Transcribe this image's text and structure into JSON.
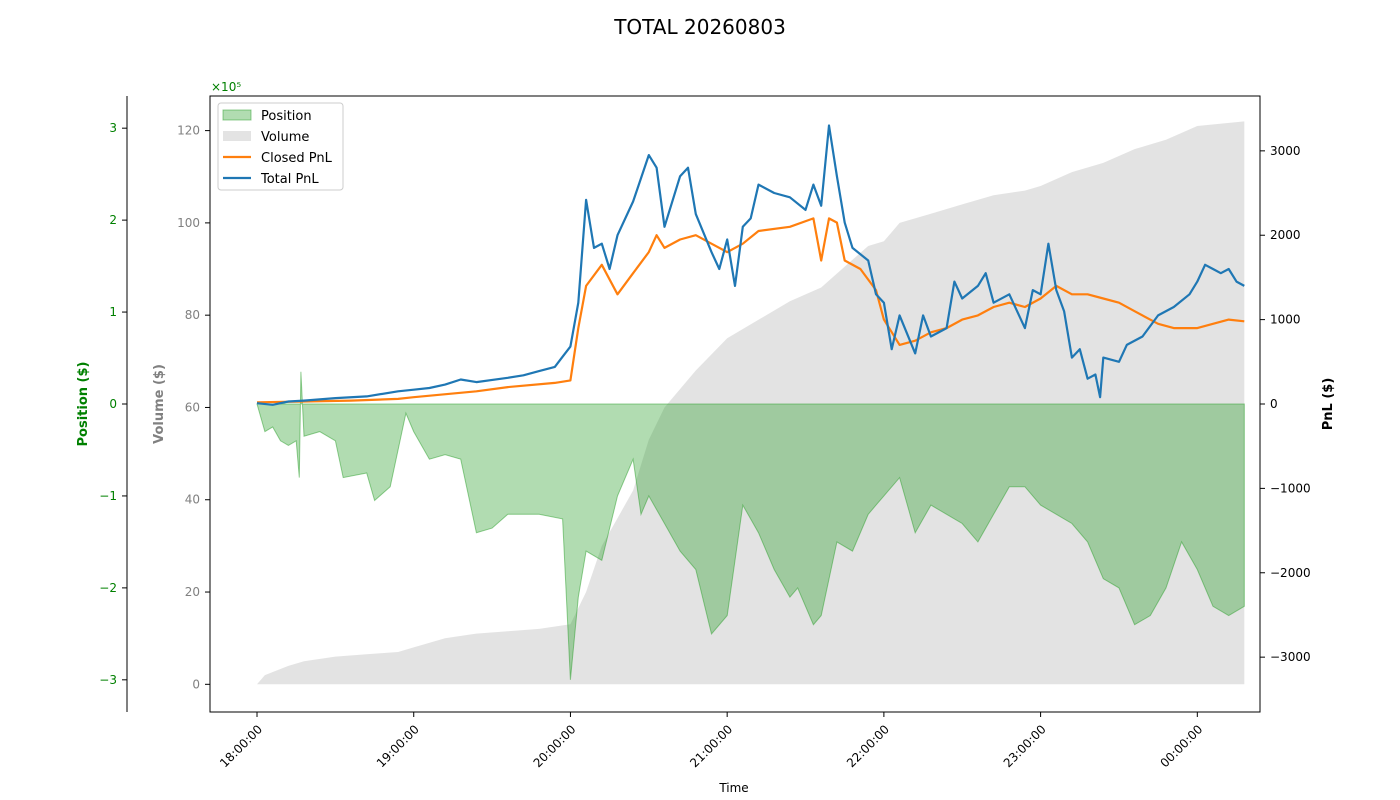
{
  "chart_data": {
    "type": "line",
    "title": "TOTAL 20260803",
    "xlabel": "Time",
    "x_tick_labels": [
      "18:00:00",
      "19:00:00",
      "20:00:00",
      "21:00:00",
      "22:00:00",
      "23:00:00",
      "00:00:00"
    ],
    "x_range_hours": [
      17.7,
      24.4
    ],
    "pnl_axis": {
      "label": "PnL ($)",
      "ticks": [
        -3000,
        -2000,
        -1000,
        0,
        1000,
        2000,
        3000
      ],
      "range": [
        -3650,
        3650
      ],
      "color": "#000000"
    },
    "volume_axis": {
      "label": "Volume ($)",
      "ticks": [
        0,
        20,
        40,
        60,
        80,
        100,
        120
      ],
      "range": [
        -6,
        127.5
      ],
      "color": "#808080"
    },
    "position_axis": {
      "label": "Position ($)",
      "ticks": [
        -3,
        -2,
        -1,
        0,
        1,
        2,
        3
      ],
      "range": [
        -3.35,
        3.35
      ],
      "multiplier": "×10⁵",
      "color": "#008000"
    },
    "legend": {
      "placement": "top-left",
      "entries": [
        {
          "name": "Position",
          "kind": "patch",
          "color": "#2ca02c"
        },
        {
          "name": "Volume",
          "kind": "patch",
          "color": "#c8c8c8"
        },
        {
          "name": "Closed PnL",
          "kind": "line",
          "color": "#ff7f0e"
        },
        {
          "name": "Total PnL",
          "kind": "line",
          "color": "#1f77b4"
        }
      ]
    },
    "series": [
      {
        "name": "Total PnL",
        "axis": "pnl",
        "color": "#1f77b4",
        "points": [
          [
            18.0,
            10
          ],
          [
            18.1,
            -10
          ],
          [
            18.2,
            30
          ],
          [
            18.3,
            40
          ],
          [
            18.5,
            70
          ],
          [
            18.7,
            90
          ],
          [
            18.9,
            150
          ],
          [
            19.0,
            170
          ],
          [
            19.1,
            190
          ],
          [
            19.2,
            230
          ],
          [
            19.3,
            290
          ],
          [
            19.4,
            260
          ],
          [
            19.6,
            310
          ],
          [
            19.7,
            340
          ],
          [
            19.8,
            390
          ],
          [
            19.9,
            440
          ],
          [
            19.95,
            560
          ],
          [
            20.0,
            680
          ],
          [
            20.05,
            1200
          ],
          [
            20.1,
            2420
          ],
          [
            20.15,
            1850
          ],
          [
            20.2,
            1900
          ],
          [
            20.25,
            1600
          ],
          [
            20.3,
            2000
          ],
          [
            20.4,
            2400
          ],
          [
            20.5,
            2950
          ],
          [
            20.55,
            2800
          ],
          [
            20.6,
            2100
          ],
          [
            20.7,
            2700
          ],
          [
            20.75,
            2800
          ],
          [
            20.8,
            2250
          ],
          [
            20.9,
            1800
          ],
          [
            20.95,
            1600
          ],
          [
            21.0,
            1950
          ],
          [
            21.05,
            1400
          ],
          [
            21.1,
            2100
          ],
          [
            21.15,
            2200
          ],
          [
            21.2,
            2600
          ],
          [
            21.3,
            2500
          ],
          [
            21.4,
            2450
          ],
          [
            21.5,
            2300
          ],
          [
            21.55,
            2600
          ],
          [
            21.6,
            2350
          ],
          [
            21.65,
            3300
          ],
          [
            21.7,
            2700
          ],
          [
            21.75,
            2150
          ],
          [
            21.8,
            1850
          ],
          [
            21.9,
            1700
          ],
          [
            21.95,
            1300
          ],
          [
            22.0,
            1200
          ],
          [
            22.05,
            650
          ],
          [
            22.1,
            1050
          ],
          [
            22.2,
            600
          ],
          [
            22.25,
            1050
          ],
          [
            22.3,
            800
          ],
          [
            22.4,
            900
          ],
          [
            22.45,
            1450
          ],
          [
            22.5,
            1250
          ],
          [
            22.6,
            1400
          ],
          [
            22.65,
            1550
          ],
          [
            22.7,
            1200
          ],
          [
            22.8,
            1300
          ],
          [
            22.85,
            1100
          ],
          [
            22.9,
            900
          ],
          [
            22.95,
            1350
          ],
          [
            23.0,
            1300
          ],
          [
            23.05,
            1900
          ],
          [
            23.1,
            1350
          ],
          [
            23.15,
            1100
          ],
          [
            23.2,
            550
          ],
          [
            23.25,
            650
          ],
          [
            23.3,
            300
          ],
          [
            23.35,
            350
          ],
          [
            23.38,
            80
          ],
          [
            23.4,
            550
          ],
          [
            23.5,
            500
          ],
          [
            23.55,
            700
          ],
          [
            23.65,
            800
          ],
          [
            23.75,
            1050
          ],
          [
            23.85,
            1150
          ],
          [
            23.95,
            1300
          ],
          [
            24.0,
            1450
          ],
          [
            24.05,
            1650
          ],
          [
            24.1,
            1600
          ],
          [
            24.15,
            1550
          ],
          [
            24.2,
            1600
          ],
          [
            24.25,
            1450
          ],
          [
            24.3,
            1400
          ]
        ]
      },
      {
        "name": "Closed PnL",
        "axis": "pnl",
        "color": "#ff7f0e",
        "points": [
          [
            18.0,
            20
          ],
          [
            18.3,
            30
          ],
          [
            18.6,
            40
          ],
          [
            18.9,
            60
          ],
          [
            19.0,
            80
          ],
          [
            19.4,
            150
          ],
          [
            19.6,
            200
          ],
          [
            19.9,
            250
          ],
          [
            20.0,
            280
          ],
          [
            20.05,
            900
          ],
          [
            20.1,
            1400
          ],
          [
            20.2,
            1650
          ],
          [
            20.3,
            1300
          ],
          [
            20.4,
            1550
          ],
          [
            20.5,
            1800
          ],
          [
            20.55,
            2000
          ],
          [
            20.6,
            1850
          ],
          [
            20.7,
            1950
          ],
          [
            20.8,
            2000
          ],
          [
            20.9,
            1900
          ],
          [
            21.0,
            1800
          ],
          [
            21.1,
            1900
          ],
          [
            21.2,
            2050
          ],
          [
            21.4,
            2100
          ],
          [
            21.55,
            2200
          ],
          [
            21.6,
            1700
          ],
          [
            21.65,
            2200
          ],
          [
            21.7,
            2150
          ],
          [
            21.75,
            1700
          ],
          [
            21.85,
            1600
          ],
          [
            21.95,
            1350
          ],
          [
            22.0,
            1000
          ],
          [
            22.1,
            700
          ],
          [
            22.2,
            750
          ],
          [
            22.3,
            850
          ],
          [
            22.4,
            900
          ],
          [
            22.5,
            1000
          ],
          [
            22.6,
            1050
          ],
          [
            22.7,
            1150
          ],
          [
            22.8,
            1200
          ],
          [
            22.9,
            1150
          ],
          [
            23.0,
            1250
          ],
          [
            23.1,
            1400
          ],
          [
            23.2,
            1300
          ],
          [
            23.3,
            1300
          ],
          [
            23.4,
            1250
          ],
          [
            23.5,
            1200
          ],
          [
            23.6,
            1100
          ],
          [
            23.75,
            950
          ],
          [
            23.85,
            900
          ],
          [
            24.0,
            900
          ],
          [
            24.1,
            950
          ],
          [
            24.2,
            1000
          ],
          [
            24.3,
            980
          ]
        ]
      },
      {
        "name": "Volume",
        "axis": "volume",
        "color": "#c8c8c8",
        "points": [
          [
            18.0,
            0
          ],
          [
            18.05,
            2
          ],
          [
            18.2,
            4
          ],
          [
            18.3,
            5
          ],
          [
            18.5,
            6
          ],
          [
            18.7,
            6.5
          ],
          [
            18.9,
            7
          ],
          [
            19.0,
            8
          ],
          [
            19.2,
            10
          ],
          [
            19.4,
            11
          ],
          [
            19.6,
            11.5
          ],
          [
            19.8,
            12
          ],
          [
            20.0,
            13
          ],
          [
            20.1,
            20
          ],
          [
            20.2,
            30
          ],
          [
            20.3,
            36
          ],
          [
            20.4,
            42
          ],
          [
            20.5,
            53
          ],
          [
            20.6,
            60
          ],
          [
            20.8,
            68
          ],
          [
            21.0,
            75
          ],
          [
            21.2,
            79
          ],
          [
            21.4,
            83
          ],
          [
            21.6,
            86
          ],
          [
            21.8,
            92
          ],
          [
            21.9,
            95
          ],
          [
            22.0,
            96
          ],
          [
            22.1,
            100
          ],
          [
            22.3,
            102
          ],
          [
            22.5,
            104
          ],
          [
            22.7,
            106
          ],
          [
            22.9,
            107
          ],
          [
            23.0,
            108
          ],
          [
            23.2,
            111
          ],
          [
            23.4,
            113
          ],
          [
            23.6,
            116
          ],
          [
            23.8,
            118
          ],
          [
            24.0,
            121
          ],
          [
            24.3,
            122
          ]
        ]
      },
      {
        "name": "Position",
        "axis": "position",
        "color": "#2ca02c",
        "points": [
          [
            18.0,
            0
          ],
          [
            18.05,
            -0.3
          ],
          [
            18.1,
            -0.25
          ],
          [
            18.15,
            -0.4
          ],
          [
            18.2,
            -0.45
          ],
          [
            18.25,
            -0.4
          ],
          [
            18.27,
            -0.8
          ],
          [
            18.28,
            0.35
          ],
          [
            18.3,
            -0.35
          ],
          [
            18.4,
            -0.3
          ],
          [
            18.5,
            -0.4
          ],
          [
            18.55,
            -0.8
          ],
          [
            18.7,
            -0.75
          ],
          [
            18.75,
            -1.05
          ],
          [
            18.85,
            -0.9
          ],
          [
            18.95,
            -0.1
          ],
          [
            19.0,
            -0.3
          ],
          [
            19.1,
            -0.6
          ],
          [
            19.2,
            -0.55
          ],
          [
            19.3,
            -0.6
          ],
          [
            19.4,
            -1.4
          ],
          [
            19.5,
            -1.35
          ],
          [
            19.6,
            -1.2
          ],
          [
            19.8,
            -1.2
          ],
          [
            19.95,
            -1.25
          ],
          [
            20.0,
            -3.0
          ],
          [
            20.05,
            -2.1
          ],
          [
            20.1,
            -1.6
          ],
          [
            20.2,
            -1.7
          ],
          [
            20.3,
            -1.0
          ],
          [
            20.4,
            -0.6
          ],
          [
            20.45,
            -1.2
          ],
          [
            20.5,
            -1.0
          ],
          [
            20.6,
            -1.3
          ],
          [
            20.7,
            -1.6
          ],
          [
            20.8,
            -1.8
          ],
          [
            20.9,
            -2.5
          ],
          [
            21.0,
            -2.3
          ],
          [
            21.05,
            -1.7
          ],
          [
            21.1,
            -1.1
          ],
          [
            21.2,
            -1.4
          ],
          [
            21.3,
            -1.8
          ],
          [
            21.4,
            -2.1
          ],
          [
            21.45,
            -2.0
          ],
          [
            21.55,
            -2.4
          ],
          [
            21.6,
            -2.3
          ],
          [
            21.7,
            -1.5
          ],
          [
            21.8,
            -1.6
          ],
          [
            21.9,
            -1.2
          ],
          [
            21.95,
            -1.1
          ],
          [
            22.0,
            -1.0
          ],
          [
            22.1,
            -0.8
          ],
          [
            22.2,
            -1.4
          ],
          [
            22.3,
            -1.1
          ],
          [
            22.4,
            -1.2
          ],
          [
            22.5,
            -1.3
          ],
          [
            22.6,
            -1.5
          ],
          [
            22.7,
            -1.2
          ],
          [
            22.8,
            -0.9
          ],
          [
            22.9,
            -0.9
          ],
          [
            23.0,
            -1.1
          ],
          [
            23.1,
            -1.2
          ],
          [
            23.2,
            -1.3
          ],
          [
            23.3,
            -1.5
          ],
          [
            23.4,
            -1.9
          ],
          [
            23.5,
            -2.0
          ],
          [
            23.6,
            -2.4
          ],
          [
            23.7,
            -2.3
          ],
          [
            23.8,
            -2.0
          ],
          [
            23.9,
            -1.5
          ],
          [
            24.0,
            -1.8
          ],
          [
            24.1,
            -2.2
          ],
          [
            24.2,
            -2.3
          ],
          [
            24.3,
            -2.2
          ]
        ]
      }
    ]
  }
}
